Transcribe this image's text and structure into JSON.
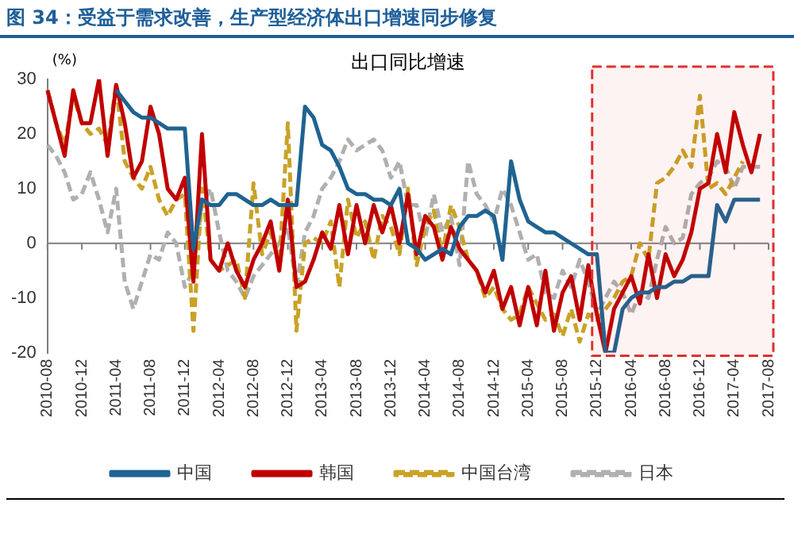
{
  "chart_data": {
    "type": "line",
    "title": "图 34：受益于需求改善，生产型经济体出口增速同步修复",
    "subtitle": "出口同比增速",
    "ylabel": "(%)",
    "categories": [
      "2010-08",
      null,
      null,
      null,
      "2010-12",
      null,
      null,
      null,
      "2011-04",
      null,
      null,
      null,
      "2011-08",
      null,
      null,
      null,
      "2011-12",
      null,
      null,
      null,
      "2012-04",
      null,
      null,
      null,
      "2012-08",
      null,
      null,
      null,
      "2012-12",
      null,
      null,
      null,
      "2013-04",
      null,
      null,
      null,
      "2013-08",
      null,
      null,
      null,
      "2013-12",
      null,
      null,
      null,
      "2014-04",
      null,
      null,
      null,
      "2014-08",
      null,
      null,
      null,
      "2014-12",
      null,
      null,
      null,
      "2015-04",
      null,
      null,
      null,
      "2015-08",
      null,
      null,
      null,
      "2015-12",
      null,
      null,
      null,
      "2016-04",
      null,
      null,
      null,
      "2016-08",
      null,
      null,
      null,
      "2016-12",
      null,
      null,
      null,
      "2017-04",
      null,
      null,
      null,
      "2017-08"
    ],
    "ylim": [
      -20,
      30
    ],
    "yticks": [
      -20,
      -10,
      0,
      10,
      20,
      30
    ],
    "grid": false,
    "legend": "bottom",
    "marker": "none",
    "ref_lines": [
      {
        "axis": "y",
        "value": 0,
        "color": "#808080"
      }
    ],
    "bands": [
      {
        "axis": "x",
        "from": "2015-12",
        "to": "2017-08",
        "color": "#e03030"
      }
    ],
    "series": [
      {
        "name": "中国",
        "color": "#1f6391",
        "line_style": "solid",
        "values": [
          null,
          null,
          null,
          null,
          null,
          null,
          null,
          null,
          28,
          26,
          24,
          23,
          23,
          22,
          21,
          21,
          21,
          -1,
          8,
          7,
          7,
          9,
          9,
          8,
          7,
          7,
          8,
          7,
          7,
          7,
          25,
          23,
          18,
          17,
          14,
          10,
          9,
          9,
          8,
          8,
          7,
          10,
          0,
          -1,
          -3,
          -2,
          -1,
          -2,
          3,
          5,
          5,
          6,
          5,
          -3,
          15,
          8,
          4,
          3,
          2,
          2,
          1,
          0,
          -1,
          -2,
          -2,
          -20,
          -20,
          -12,
          -10,
          -9,
          -9,
          -8,
          -8,
          -7,
          -7,
          -6,
          -6,
          -6,
          7,
          4,
          8,
          8,
          8,
          8,
          null
        ]
      },
      {
        "name": "韩国",
        "color": "#c00000",
        "line_style": "solid",
        "values": [
          28,
          22,
          16,
          28,
          22,
          22,
          30,
          16,
          29,
          22,
          12,
          15,
          25,
          20,
          10,
          8,
          12,
          -7,
          20,
          -3,
          -5,
          0,
          -5,
          -8,
          -3,
          0,
          4,
          -5,
          8,
          -8,
          -7,
          -3,
          2,
          -1,
          7,
          -2,
          7,
          0,
          7,
          2,
          7,
          0,
          9,
          -2,
          5,
          3,
          -3,
          3,
          -1,
          -3,
          -5,
          -9,
          -5,
          -12,
          -8,
          -15,
          -8,
          -15,
          -5,
          -16,
          -9,
          -6,
          -14,
          -4,
          -13,
          -20,
          -12,
          -9,
          -6,
          -11,
          -2,
          -10,
          -2,
          -6,
          -3,
          2,
          10,
          11,
          20,
          13,
          24,
          18,
          13,
          20,
          null
        ]
      },
      {
        "name": "中国台湾",
        "color": "#c9a227",
        "line_style": "dashed",
        "values": [
          28,
          22,
          18,
          27,
          22,
          20,
          21,
          18,
          29,
          15,
          12,
          10,
          14,
          8,
          5,
          8,
          9,
          -16,
          10,
          -3,
          -5,
          -4,
          -3,
          -10,
          11,
          -2,
          2,
          -4,
          22,
          -16,
          0,
          1,
          0,
          4,
          -8,
          8,
          1,
          4,
          -3,
          5,
          3,
          -2,
          10,
          -4,
          3,
          6,
          -2,
          7,
          3,
          -3,
          -5,
          -10,
          -8,
          -12,
          -14,
          -13,
          -8,
          -11,
          -14,
          -13,
          -17,
          -12,
          -18,
          -13,
          -14,
          -12,
          -10,
          -7,
          -6,
          0,
          -3,
          11,
          12,
          14,
          17,
          14,
          27,
          10,
          11,
          9,
          12,
          15,
          null,
          null,
          null
        ]
      },
      {
        "name": "日本",
        "color": "#b0b0b0",
        "line_style": "dashed",
        "values": [
          18,
          16,
          13,
          8,
          9,
          13,
          8,
          2,
          10,
          -7,
          -12,
          -7,
          -2,
          -3,
          2,
          0,
          -8,
          -5,
          7,
          10,
          2,
          -5,
          -7,
          -10,
          -6,
          -4,
          -2,
          0,
          3,
          -8,
          2,
          5,
          10,
          12,
          15,
          19,
          17,
          18,
          19,
          17,
          12,
          15,
          7,
          7,
          1,
          9,
          2,
          5,
          -4,
          15,
          9,
          7,
          4,
          10,
          7,
          2,
          -3,
          -2,
          -9,
          -10,
          -5,
          -8,
          -3,
          -7,
          -13,
          -10,
          -7,
          -9,
          -13,
          -9,
          -10,
          -3,
          3,
          0,
          1,
          9,
          11,
          12,
          15,
          14,
          10,
          14,
          14,
          14,
          null
        ]
      }
    ]
  }
}
